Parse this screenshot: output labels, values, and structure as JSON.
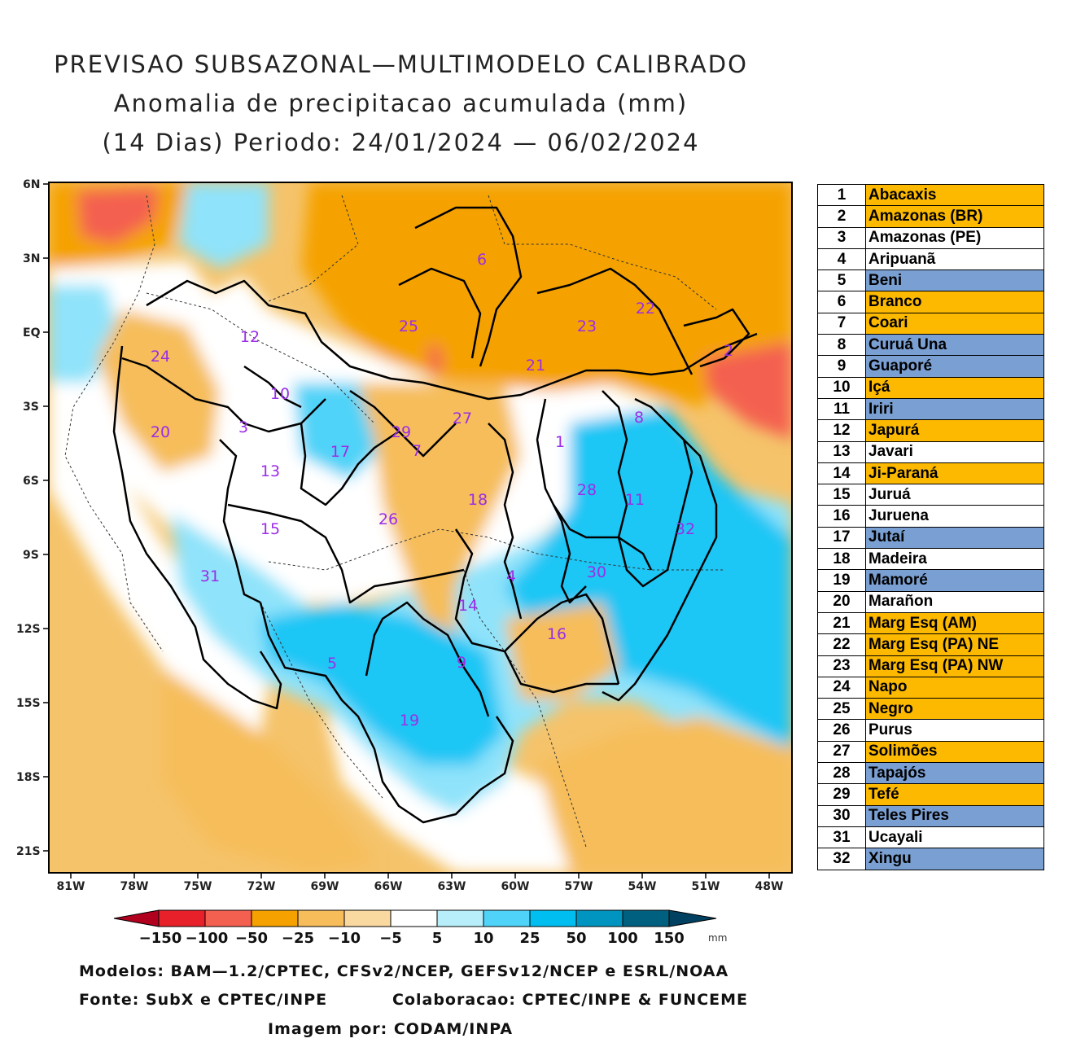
{
  "title": {
    "line1": "PREVISAO SUBSAZONAL—MULTIMODELO CALIBRADO",
    "line2": "Anomalia de precipitacao acumulada (mm)",
    "line3": "(14 Dias) Periodo: 24/01/2024 — 06/02/2024"
  },
  "map": {
    "lat_labels": [
      "6N",
      "3N",
      "EQ",
      "3S",
      "6S",
      "9S",
      "12S",
      "15S",
      "18S",
      "21S"
    ],
    "lon_labels": [
      "81W",
      "78W",
      "75W",
      "72W",
      "69W",
      "66W",
      "63W",
      "60W",
      "57W",
      "54W",
      "51W",
      "48W"
    ],
    "basin_numbers": [
      "1",
      "2",
      "3",
      "4",
      "5",
      "6",
      "7",
      "8",
      "9",
      "10",
      "11",
      "12",
      "13",
      "14",
      "15",
      "16",
      "17",
      "18",
      "19",
      "20",
      "21",
      "22",
      "23",
      "24",
      "25",
      "26",
      "27",
      "28",
      "29",
      "30",
      "31",
      "32"
    ]
  },
  "legend": {
    "labels": [
      "−150",
      "−100",
      "−50",
      "−25",
      "−10",
      "−5",
      "5",
      "10",
      "25",
      "50",
      "100",
      "150"
    ],
    "unit": "mm",
    "colors": [
      "#b2001f",
      "#e8202a",
      "#f4604f",
      "#f5a200",
      "#f6bd5a",
      "#f9d9a0",
      "#ffffff",
      "#b8eefa",
      "#50d3f8",
      "#00bff0",
      "#0095c0",
      "#006080",
      "#004060"
    ]
  },
  "credits": {
    "models": "Modelos: BAM—1.2/CPTEC, CFSv2/NCEP, GEFSv12/NCEP e ESRL/NOAA",
    "source": "Fonte: SubX e CPTEC/INPE",
    "collab": "Colaboracao: CPTEC/INPE & FUNCEME",
    "image_by": "Imagem por: CODAM/INPA"
  },
  "colors": {
    "orange": "#fcb900",
    "blue": "#7a9fd2",
    "white": "#ffffff"
  },
  "basins": [
    {
      "num": "1",
      "name": "Abacaxis",
      "status": "orange"
    },
    {
      "num": "2",
      "name": "Amazonas (BR)",
      "status": "orange"
    },
    {
      "num": "3",
      "name": "Amazonas (PE)",
      "status": "white"
    },
    {
      "num": "4",
      "name": "Aripuanã",
      "status": "white"
    },
    {
      "num": "5",
      "name": "Beni",
      "status": "blue"
    },
    {
      "num": "6",
      "name": "Branco",
      "status": "orange"
    },
    {
      "num": "7",
      "name": "Coari",
      "status": "orange"
    },
    {
      "num": "8",
      "name": "Curuá Una",
      "status": "blue"
    },
    {
      "num": "9",
      "name": "Guaporé",
      "status": "blue"
    },
    {
      "num": "10",
      "name": "Içá",
      "status": "orange"
    },
    {
      "num": "11",
      "name": "Iriri",
      "status": "blue"
    },
    {
      "num": "12",
      "name": "Japurá",
      "status": "orange"
    },
    {
      "num": "13",
      "name": "Javari",
      "status": "white"
    },
    {
      "num": "14",
      "name": "Ji-Paraná",
      "status": "orange"
    },
    {
      "num": "15",
      "name": "Juruá",
      "status": "white"
    },
    {
      "num": "16",
      "name": "Juruena",
      "status": "white"
    },
    {
      "num": "17",
      "name": "Jutaí",
      "status": "blue"
    },
    {
      "num": "18",
      "name": "Madeira",
      "status": "white"
    },
    {
      "num": "19",
      "name": "Mamoré",
      "status": "blue"
    },
    {
      "num": "20",
      "name": "Marañon",
      "status": "white"
    },
    {
      "num": "21",
      "name": "Marg Esq (AM)",
      "status": "orange"
    },
    {
      "num": "22",
      "name": "Marg Esq (PA) NE",
      "status": "orange"
    },
    {
      "num": "23",
      "name": "Marg Esq (PA) NW",
      "status": "orange"
    },
    {
      "num": "24",
      "name": "Napo",
      "status": "orange"
    },
    {
      "num": "25",
      "name": "Negro",
      "status": "orange"
    },
    {
      "num": "26",
      "name": "Purus",
      "status": "white"
    },
    {
      "num": "27",
      "name": "Solimões",
      "status": "orange"
    },
    {
      "num": "28",
      "name": "Tapajós",
      "status": "blue"
    },
    {
      "num": "29",
      "name": "Tefé",
      "status": "orange"
    },
    {
      "num": "30",
      "name": "Teles Pires",
      "status": "blue"
    },
    {
      "num": "31",
      "name": "Ucayali",
      "status": "white"
    },
    {
      "num": "32",
      "name": "Xingu",
      "status": "blue"
    }
  ]
}
